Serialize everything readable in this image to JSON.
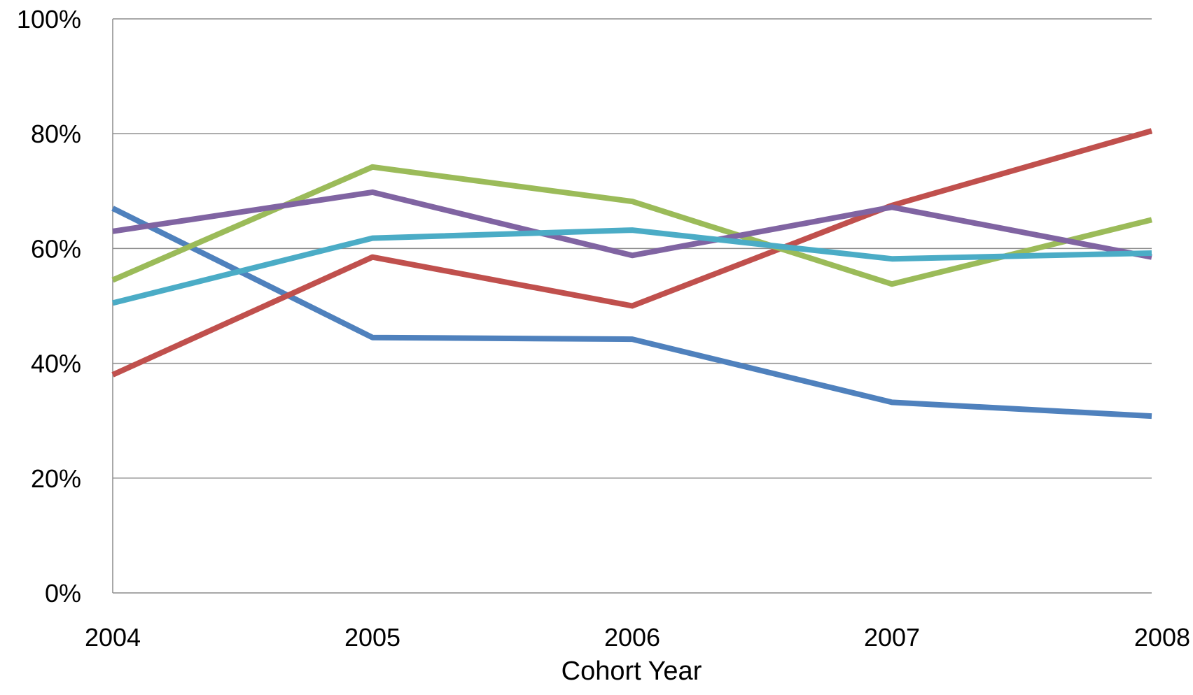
{
  "chart_data": {
    "type": "line",
    "title": "",
    "xlabel": "Cohort Year",
    "ylabel": "",
    "x": [
      "2004",
      "2005",
      "2006",
      "2007",
      "2008"
    ],
    "y_ticks": [
      "0%",
      "20%",
      "40%",
      "60%",
      "80%",
      "100%"
    ],
    "ylim": [
      0,
      100
    ],
    "grid": true,
    "legend": "none",
    "series": [
      {
        "color": "#4F81BD",
        "values": [
          67,
          44.5,
          44.2,
          33.2,
          30.8
        ]
      },
      {
        "color": "#C0504D",
        "values": [
          38,
          58.5,
          50,
          67.5,
          80.5
        ]
      },
      {
        "color": "#9BBB59",
        "values": [
          54.5,
          74.2,
          68.2,
          53.8,
          65
        ]
      },
      {
        "color": "#8064A2",
        "values": [
          63,
          69.8,
          58.8,
          67.2,
          58.5
        ]
      },
      {
        "color": "#4BACC6",
        "values": [
          50.5,
          61.8,
          63.2,
          58.2,
          59.2
        ]
      }
    ]
  }
}
